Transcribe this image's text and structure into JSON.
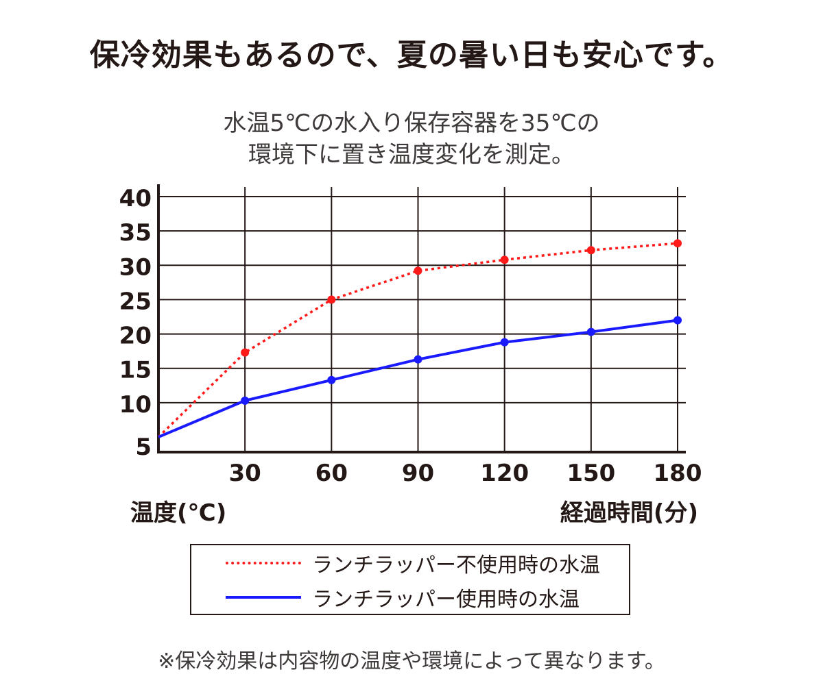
{
  "headline": "保冷効果もあるので、夏の暑い日も安心です。",
  "footnote": "※保冷効果は内容物の温度や環境によって異なります。",
  "chart_data": {
    "type": "line",
    "title": "水温5℃の水入り保存容器を35℃の",
    "subtitle": "環境下に置き温度変化を測定。",
    "xlabel": "経過時間(分)",
    "ylabel": "温度(℃)",
    "x": [
      0,
      30,
      60,
      90,
      120,
      150,
      180
    ],
    "x_tick_labels": [
      "30",
      "60",
      "90",
      "120",
      "150",
      "180"
    ],
    "x_ticks": [
      30,
      60,
      90,
      120,
      150,
      180
    ],
    "y_ticks": [
      5,
      10,
      15,
      20,
      25,
      30,
      35,
      40
    ],
    "xlim": [
      0,
      180
    ],
    "ylim": [
      5,
      40
    ],
    "grid": true,
    "legend_placement": "bottom-center",
    "series": [
      {
        "name": "ランチラッパー不使用時の水温",
        "values": [
          5.0,
          17.3,
          25.0,
          29.2,
          30.8,
          32.2,
          33.2
        ],
        "color": "#ff1a1a",
        "style": "dotted"
      },
      {
        "name": "ランチラッパー使用時の水温",
        "values": [
          5.0,
          10.3,
          13.3,
          16.3,
          18.8,
          20.3,
          22.0
        ],
        "color": "#1a1aff",
        "style": "solid"
      }
    ]
  }
}
